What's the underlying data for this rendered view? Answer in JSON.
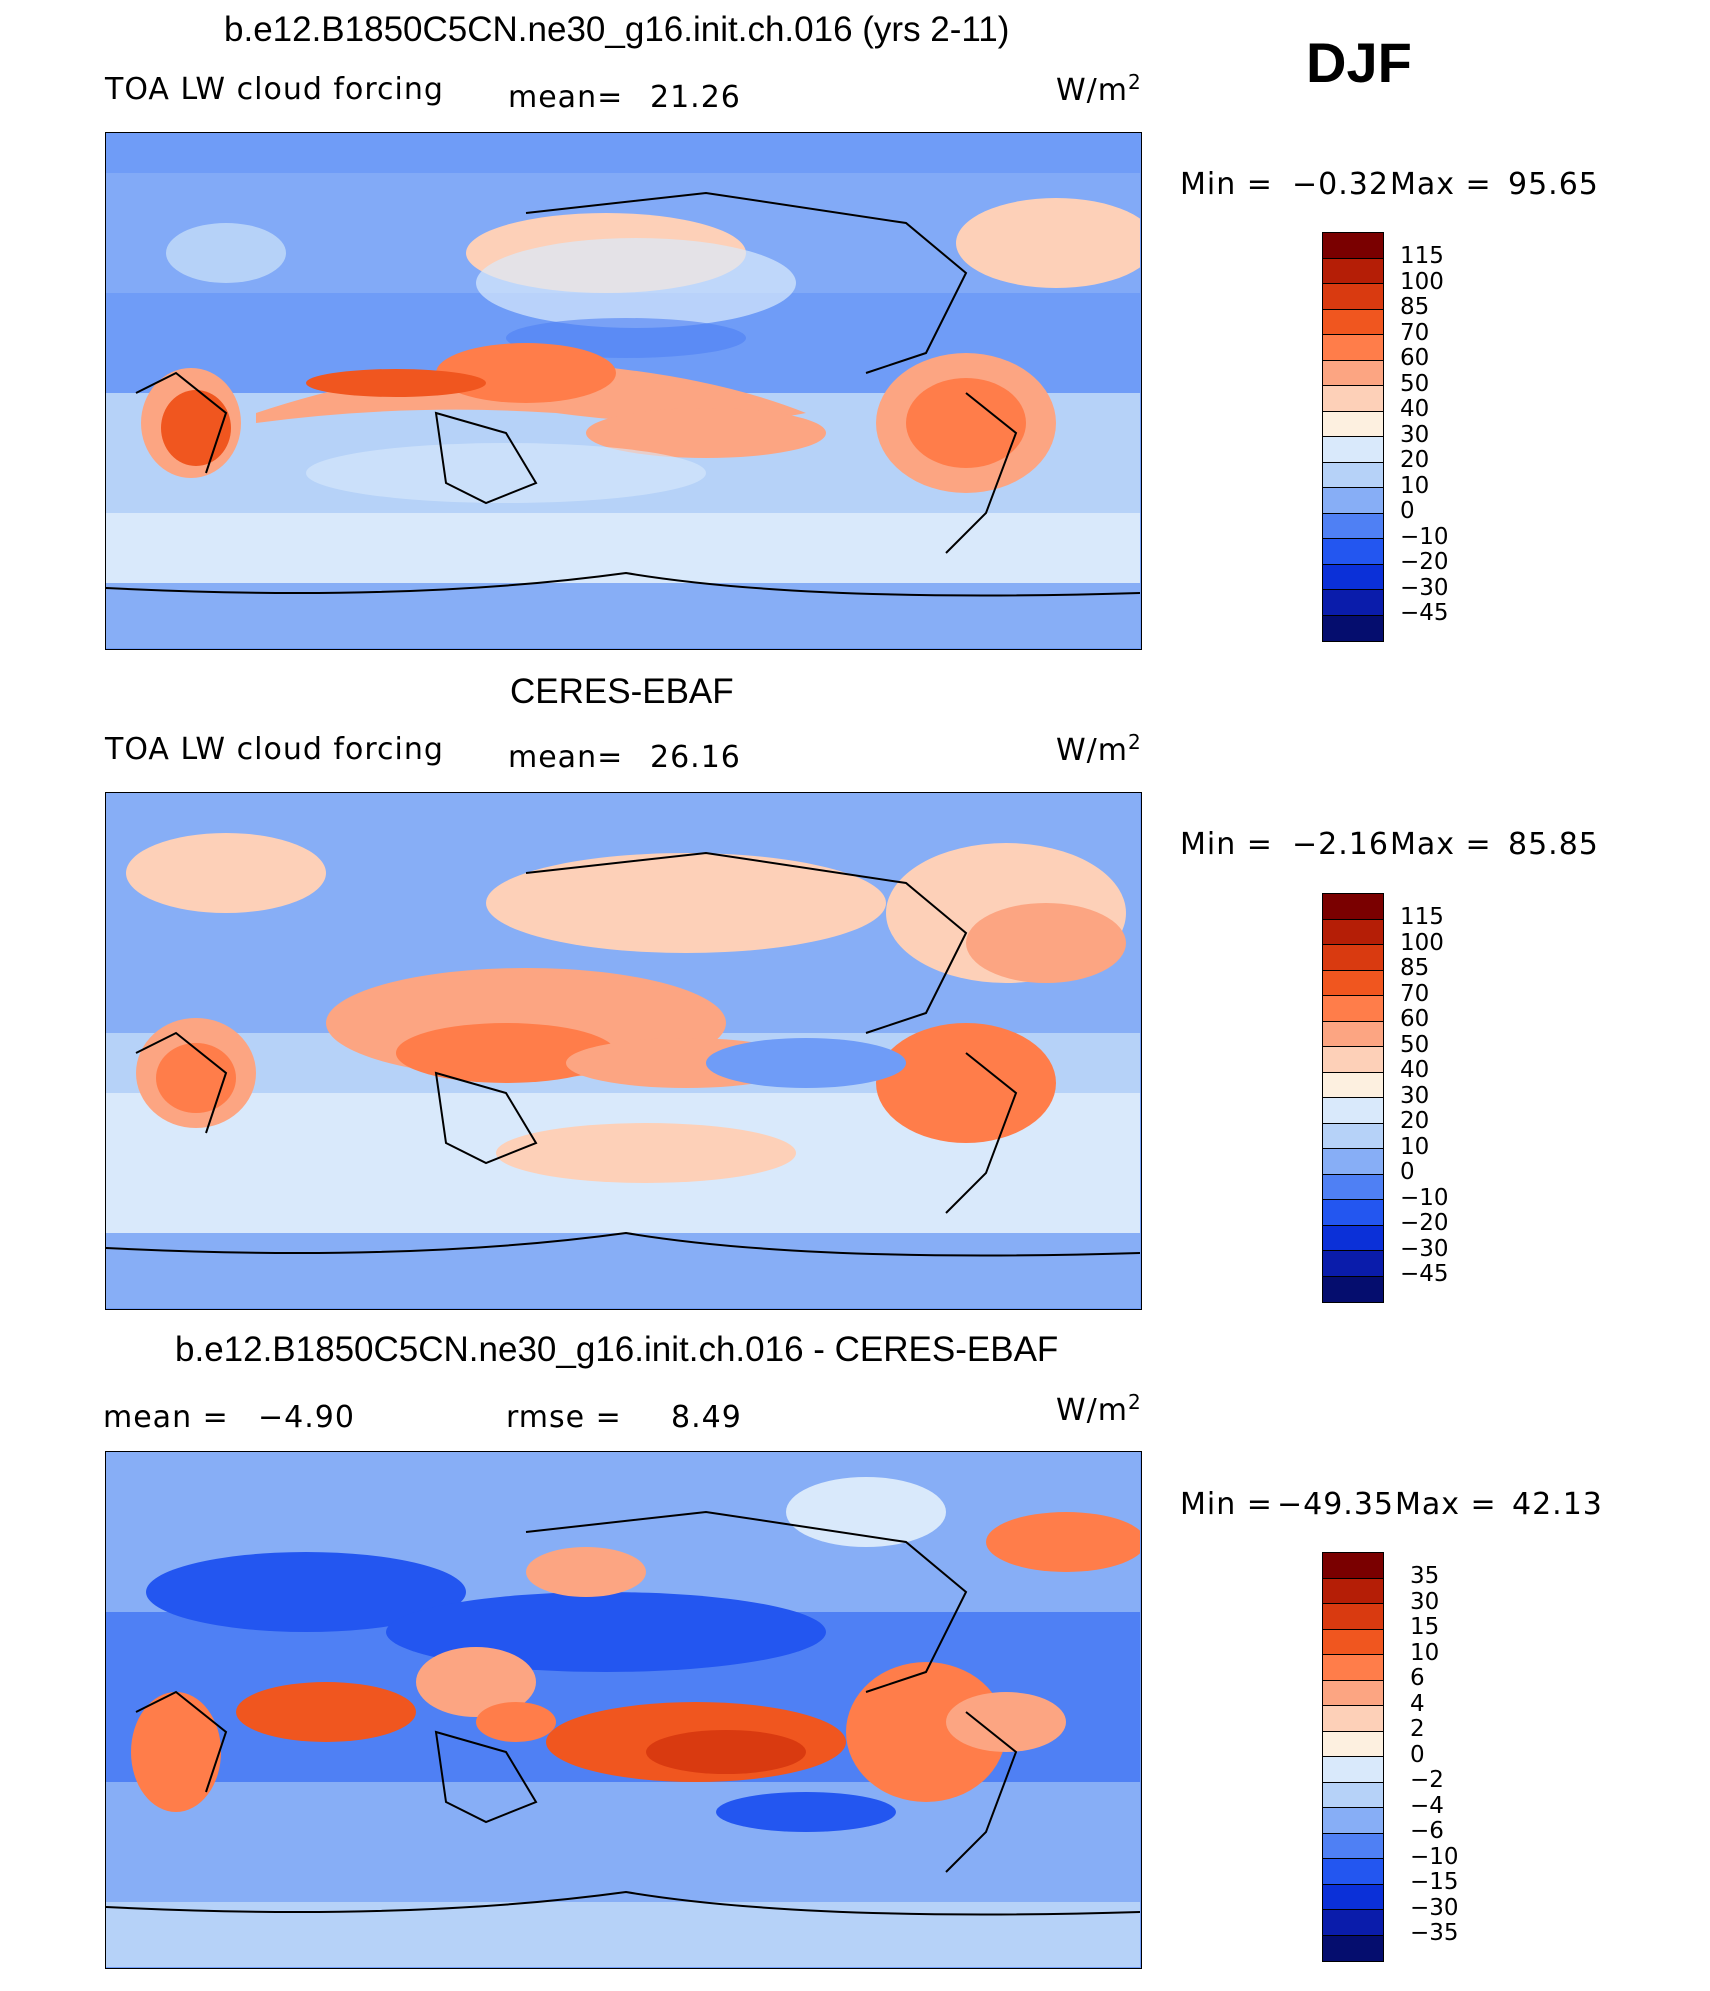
{
  "season": "DJF",
  "units": {
    "base": "W/m",
    "exp": "2"
  },
  "panels": [
    {
      "title": "b.e12.B1850C5CN.ne30_g16.init.ch.016 (yrs 2-11)",
      "left_label": "TOA LW cloud forcing",
      "mid_label": "mean=",
      "mid_value": "21.26",
      "min_label": "Min =",
      "min_value": "−0.32",
      "max_label": "Max =",
      "max_value": "95.65"
    },
    {
      "title": "CERES-EBAF",
      "left_label": "TOA LW cloud forcing",
      "mid_label": "mean=",
      "mid_value": "26.16",
      "min_label": "Min =",
      "min_value": "−2.16",
      "max_label": "Max =",
      "max_value": "85.85"
    },
    {
      "title": "b.e12.B1850C5CN.ne30_g16.init.ch.016 - CERES-EBAF",
      "left_label": "mean =",
      "left_value": "−4.90",
      "mid_label": "rmse =",
      "mid_value": "8.49",
      "min_label": "Min =",
      "min_value": "−49.35",
      "max_label": "Max =",
      "max_value": "42.13"
    }
  ],
  "colorbars": {
    "field": {
      "labels": [
        "115",
        "100",
        "85",
        "70",
        "60",
        "50",
        "40",
        "30",
        "20",
        "10",
        "0",
        "−10",
        "−20",
        "−30",
        "−45"
      ],
      "colors": [
        "#7a0000",
        "#b51e06",
        "#d93a10",
        "#f0561f",
        "#ff7d4a",
        "#fca582",
        "#fdd0b8",
        "#fdf0e0",
        "#d9e9fb",
        "#b6d2f8",
        "#87aef6",
        "#4f80f4",
        "#2356f0",
        "#0b30d8",
        "#0a1cab",
        "#050d6e"
      ]
    },
    "diff": {
      "labels": [
        "35",
        "30",
        "15",
        "10",
        "6",
        "4",
        "2",
        "0",
        "−2",
        "−4",
        "−6",
        "−10",
        "−15",
        "−30",
        "−35"
      ],
      "colors": [
        "#7a0000",
        "#b51e06",
        "#d93a10",
        "#f0561f",
        "#ff7d4a",
        "#fca582",
        "#fdd0b8",
        "#fdf0e0",
        "#d9e9fb",
        "#b6d2f8",
        "#87aef6",
        "#4f80f4",
        "#2356f0",
        "#0b30d8",
        "#0a1cab",
        "#050d6e"
      ]
    }
  }
}
